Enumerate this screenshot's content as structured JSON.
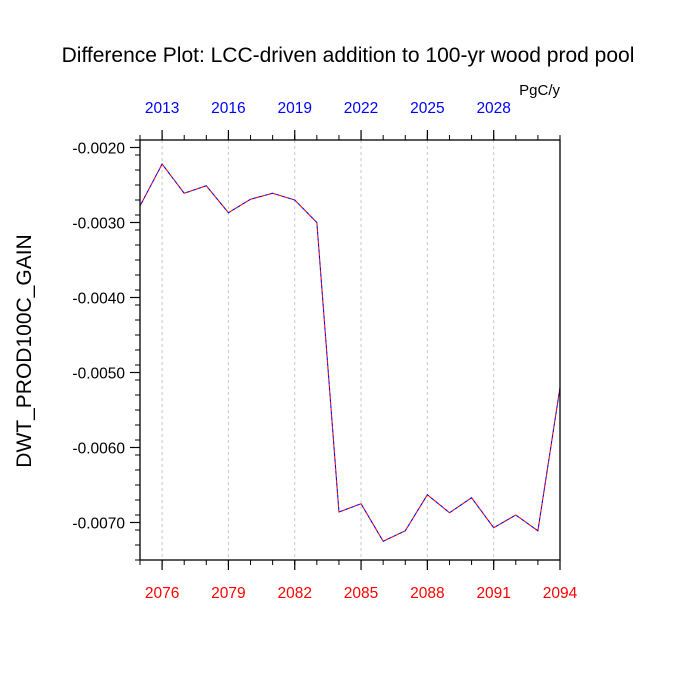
{
  "chart_data": {
    "type": "line",
    "title": "Difference Plot: LCC-driven addition to 100-yr wood prod pool",
    "units": "PgC/y",
    "ylabel": "DWT_PROD100C_GAIN",
    "xlabel": "",
    "x": [
      2075,
      2076,
      2077,
      2078,
      2079,
      2080,
      2081,
      2082,
      2083,
      2084,
      2085,
      2086,
      2087,
      2088,
      2089,
      2090,
      2091,
      2092,
      2093,
      2094
    ],
    "xlim": [
      2075,
      2094
    ],
    "ylim": [
      -0.0075,
      -0.0019
    ],
    "series": [
      {
        "values": [
          -0.00278,
          -0.00222,
          -0.00261,
          -0.00251,
          -0.00287,
          -0.00269,
          -0.00261,
          -0.0027,
          -0.003,
          -0.00686,
          -0.00675,
          -0.00725,
          -0.00711,
          -0.00663,
          -0.00687,
          -0.00667,
          -0.00707,
          -0.0069,
          -0.00711,
          -0.0052
        ],
        "colors": [
          "#ff0000",
          "#0000ff"
        ],
        "style": "dashed"
      }
    ],
    "y_ticks": [
      -0.002,
      -0.003,
      -0.004,
      -0.005,
      -0.006,
      -0.007
    ],
    "y_tick_labels": [
      "-0.0020",
      "-0.0030",
      "-0.0040",
      "-0.0050",
      "-0.0060",
      "-0.0070"
    ],
    "y_minor_step": 0.0002,
    "bottom_axis": {
      "ticks": [
        2076,
        2079,
        2082,
        2085,
        2088,
        2091,
        2094
      ],
      "labels": [
        "2076",
        "2079",
        "2082",
        "2085",
        "2088",
        "2091",
        "2094"
      ],
      "color": "#ff0000"
    },
    "top_axis": {
      "ticks": [
        2076,
        2079,
        2082,
        2085,
        2088,
        2091
      ],
      "labels": [
        "2013",
        "2016",
        "2019",
        "2022",
        "2025",
        "2028"
      ],
      "color": "#0000ff"
    },
    "x_minor_step": 1,
    "grid": "vertical-dashed",
    "legend": "none"
  }
}
